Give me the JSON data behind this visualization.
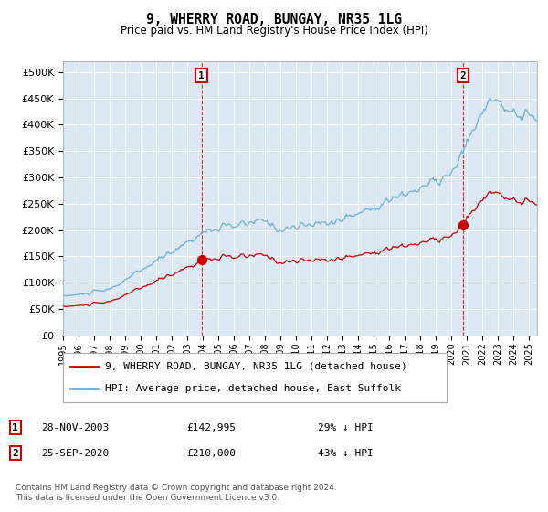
{
  "title": "9, WHERRY ROAD, BUNGAY, NR35 1LG",
  "subtitle": "Price paid vs. HM Land Registry's House Price Index (HPI)",
  "hpi_color": "#6baed6",
  "price_color": "#cc0000",
  "marker_color": "#cc0000",
  "plot_bg": "#dce9f5",
  "ylim": [
    0,
    520000
  ],
  "yticks": [
    0,
    50000,
    100000,
    150000,
    200000,
    250000,
    300000,
    350000,
    400000,
    450000,
    500000
  ],
  "transactions": [
    {
      "date_num": 2003.91,
      "price": 142995,
      "label": "1"
    },
    {
      "date_num": 2020.73,
      "price": 210000,
      "label": "2"
    }
  ],
  "legend_line1": "9, WHERRY ROAD, BUNGAY, NR35 1LG (detached house)",
  "legend_line2": "HPI: Average price, detached house, East Suffolk",
  "annotation1_label": "1",
  "annotation1_date": "28-NOV-2003",
  "annotation1_price": "£142,995",
  "annotation1_pct": "29% ↓ HPI",
  "annotation2_label": "2",
  "annotation2_date": "25-SEP-2020",
  "annotation2_price": "£210,000",
  "annotation2_pct": "43% ↓ HPI",
  "footer": "Contains HM Land Registry data © Crown copyright and database right 2024.\nThis data is licensed under the Open Government Licence v3.0.",
  "xmin": 1995,
  "xmax": 2025.5
}
